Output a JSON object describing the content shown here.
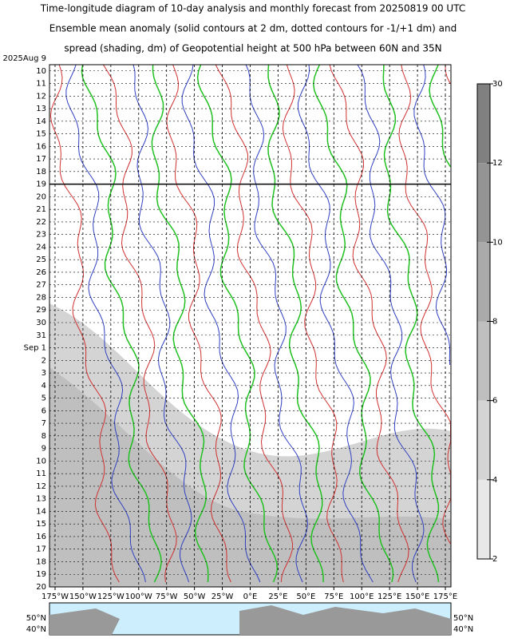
{
  "chart_data": {
    "type": "hovmoller",
    "title": [
      "Time-longitude diagram of 10-day analysis and monthly forecast from 20250819 00 UTC",
      "Ensemble mean anomaly (solid contours at 2 dm, dotted contours for -1/+1 dm) and",
      "spread (shading, dm) of Geopotential height at 500 hPa between 60N and 35N"
    ],
    "categories": [
      "2025Aug  9",
      "10",
      "11",
      "12",
      "13",
      "14",
      "15",
      "16",
      "17",
      "18",
      "19",
      "20",
      "21",
      "22",
      "23",
      "24",
      "25",
      "26",
      "27",
      "28",
      "29",
      "30",
      "31",
      "Sep  1",
      "2",
      "3",
      "4",
      "5",
      "6",
      "7",
      "8",
      "9",
      "10",
      "11",
      "12",
      "13",
      "14",
      "15",
      "16",
      "17",
      "18",
      "19",
      "20"
    ],
    "highlight_categories": [
      1,
      8,
      15,
      22,
      29,
      36
    ],
    "highlight_color": "#d00000",
    "divider_index": 10,
    "xlim": [
      -180,
      180
    ],
    "xticks": [
      {
        "value": -175,
        "label": "175°W"
      },
      {
        "value": -150,
        "label": "150°W"
      },
      {
        "value": -125,
        "label": "125°W"
      },
      {
        "value": -100,
        "label": "100°W"
      },
      {
        "value": -75,
        "label": "75°W"
      },
      {
        "value": -50,
        "label": "50°W"
      },
      {
        "value": -25,
        "label": "25°W"
      },
      {
        "value": 0,
        "label": "0°E"
      },
      {
        "value": 25,
        "label": "25°E"
      },
      {
        "value": 50,
        "label": "50°E"
      },
      {
        "value": 75,
        "label": "75°E"
      },
      {
        "value": 100,
        "label": "100°E"
      },
      {
        "value": 125,
        "label": "125°E"
      },
      {
        "value": 150,
        "label": "150°E"
      },
      {
        "value": 175,
        "label": "175°E"
      }
    ],
    "colorbar": {
      "ticks": [
        2,
        4,
        6,
        8,
        10,
        12,
        30
      ],
      "colors": [
        "#e8e8e8",
        "#d4d4d4",
        "#bfbfbf",
        "#aaaaaa",
        "#949494",
        "#808080"
      ]
    },
    "map_labels": [
      "50°N",
      "40°N"
    ]
  }
}
